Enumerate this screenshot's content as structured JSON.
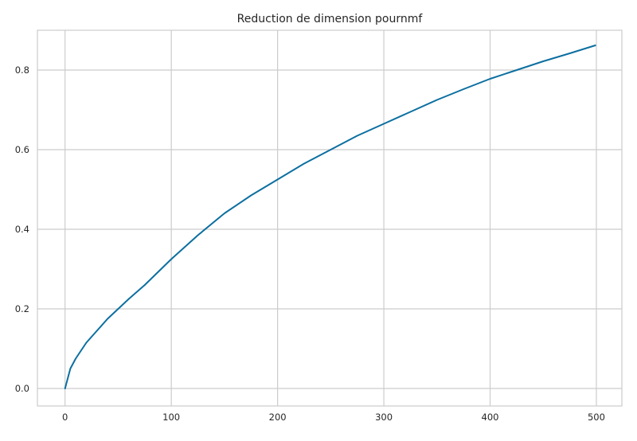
{
  "chart_data": {
    "type": "line",
    "title": "Reduction de dimension pournmf",
    "xlabel": "",
    "ylabel": "",
    "xlim": [
      -26,
      524
    ],
    "ylim": [
      -0.044,
      0.9
    ],
    "grid": true,
    "xticks": [
      0,
      100,
      200,
      300,
      400,
      500
    ],
    "xtick_labels": [
      "0",
      "100",
      "200",
      "300",
      "400",
      "500"
    ],
    "yticks": [
      0.0,
      0.2,
      0.4,
      0.6,
      0.8
    ],
    "ytick_labels": [
      "0.0",
      "0.2",
      "0.4",
      "0.6",
      "0.8"
    ],
    "series": [
      {
        "color": "#0c6fa0",
        "x": [
          0,
          1,
          2,
          5,
          10,
          20,
          30,
          40,
          50,
          60,
          75,
          100,
          125,
          150,
          175,
          200,
          225,
          250,
          275,
          300,
          325,
          350,
          375,
          400,
          425,
          450,
          475,
          499
        ],
        "values": [
          0.0,
          0.01,
          0.02,
          0.05,
          0.075,
          0.115,
          0.145,
          0.175,
          0.2,
          0.225,
          0.26,
          0.325,
          0.385,
          0.44,
          0.485,
          0.525,
          0.565,
          0.6,
          0.635,
          0.665,
          0.695,
          0.725,
          0.752,
          0.778,
          0.8,
          0.822,
          0.842,
          0.862
        ]
      }
    ]
  }
}
